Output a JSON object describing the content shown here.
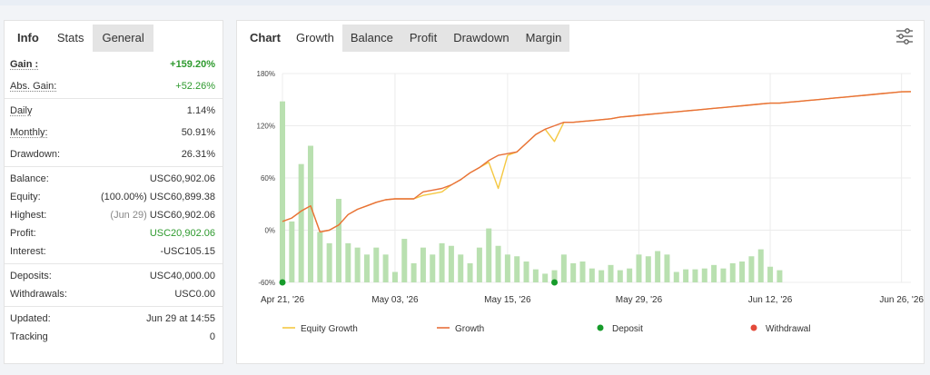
{
  "left_tabs": [
    "Info",
    "Stats",
    "General"
  ],
  "stats": {
    "gain_label": "Gain :",
    "gain_value": "+159.20%",
    "abs_gain_label": "Abs. Gain:",
    "abs_gain_value": "+52.26%",
    "daily_label": "Daily",
    "daily_value": "1.14%",
    "monthly_label": "Monthly:",
    "monthly_value": "50.91%",
    "drawdown_label": "Drawdown:",
    "drawdown_value": "26.31%",
    "balance_label": "Balance:",
    "balance_value": "USC60,902.06",
    "equity_label": "Equity:",
    "equity_note": "(100.00%)",
    "equity_value": "USC60,899.38",
    "highest_label": "Highest:",
    "highest_note": "(Jun 29)",
    "highest_value": "USC60,902.06",
    "profit_label": "Profit:",
    "profit_value": "USC20,902.06",
    "interest_label": "Interest:",
    "interest_value": "-USC105.15",
    "deposits_label": "Deposits:",
    "deposits_value": "USC40,000.00",
    "withdrawals_label": "Withdrawals:",
    "withdrawals_value": "USC0.00",
    "updated_label": "Updated:",
    "updated_value": "Jun 29 at 14:55",
    "tracking_label": "Tracking",
    "tracking_value": "0"
  },
  "right_tabs": [
    "Chart",
    "Growth",
    "Balance",
    "Profit",
    "Drawdown",
    "Margin"
  ],
  "settings_icon": "sliders-icon",
  "chart_data": {
    "type": "line",
    "y_ticks": [
      "180%",
      "120%",
      "60%",
      "0%",
      "-60%"
    ],
    "ylim": [
      -60,
      180
    ],
    "x_ticks": [
      "Apr 21, '26",
      "May 03, '26",
      "May 15, '26",
      "May 29, '26",
      "Jun 12, '26",
      "Jun 26, '26"
    ],
    "x_tick_days": [
      0,
      12,
      24,
      38,
      52,
      66
    ],
    "legend": [
      "Equity Growth",
      "Growth",
      "Deposit",
      "Withdrawal"
    ],
    "colors": {
      "equity": "#f5c842",
      "growth": "#e8703a",
      "bars": "#b9e0b0",
      "deposit": "#169b2a",
      "withdrawal": "#e34a3a",
      "grid": "#ececec"
    },
    "growth": [
      [
        0,
        10
      ],
      [
        1,
        14
      ],
      [
        2,
        22
      ],
      [
        3,
        28
      ],
      [
        4,
        -2
      ],
      [
        5,
        0
      ],
      [
        6,
        6
      ],
      [
        7,
        18
      ],
      [
        8,
        24
      ],
      [
        9,
        28
      ],
      [
        10,
        32
      ],
      [
        11,
        35
      ],
      [
        12,
        36
      ],
      [
        13,
        36
      ],
      [
        14,
        36
      ],
      [
        15,
        44
      ],
      [
        16,
        46
      ],
      [
        17,
        48
      ],
      [
        18,
        52
      ],
      [
        19,
        58
      ],
      [
        20,
        66
      ],
      [
        21,
        72
      ],
      [
        22,
        80
      ],
      [
        23,
        86
      ],
      [
        24,
        88
      ],
      [
        25,
        90
      ],
      [
        26,
        100
      ],
      [
        27,
        110
      ],
      [
        28,
        116
      ],
      [
        29,
        120
      ],
      [
        30,
        124
      ],
      [
        31,
        124
      ],
      [
        32,
        125
      ],
      [
        33,
        126
      ],
      [
        34,
        127
      ],
      [
        35,
        128
      ],
      [
        36,
        130
      ],
      [
        37,
        131
      ],
      [
        38,
        132
      ],
      [
        39,
        133
      ],
      [
        40,
        134
      ],
      [
        41,
        135
      ],
      [
        42,
        136
      ],
      [
        43,
        137
      ],
      [
        44,
        138
      ],
      [
        45,
        139
      ],
      [
        46,
        140
      ],
      [
        47,
        141
      ],
      [
        48,
        142
      ],
      [
        49,
        143
      ],
      [
        50,
        144
      ],
      [
        51,
        145
      ],
      [
        52,
        146
      ],
      [
        53,
        146
      ],
      [
        54,
        147
      ],
      [
        55,
        148
      ],
      [
        56,
        149
      ],
      [
        57,
        150
      ],
      [
        58,
        151
      ],
      [
        59,
        152
      ],
      [
        60,
        153
      ],
      [
        61,
        154
      ],
      [
        62,
        155
      ],
      [
        63,
        156
      ],
      [
        64,
        157
      ],
      [
        65,
        158
      ],
      [
        66,
        159
      ],
      [
        67,
        159.2
      ]
    ],
    "equity": [
      [
        0,
        10
      ],
      [
        1,
        14
      ],
      [
        2,
        22
      ],
      [
        3,
        28
      ],
      [
        4,
        -2
      ],
      [
        5,
        0
      ],
      [
        6,
        6
      ],
      [
        7,
        18
      ],
      [
        8,
        24
      ],
      [
        9,
        28
      ],
      [
        10,
        32
      ],
      [
        11,
        35
      ],
      [
        12,
        36
      ],
      [
        13,
        36
      ],
      [
        14,
        36
      ],
      [
        15,
        40
      ],
      [
        16,
        42
      ],
      [
        17,
        44
      ],
      [
        18,
        52
      ],
      [
        19,
        58
      ],
      [
        20,
        66
      ],
      [
        21,
        72
      ],
      [
        22,
        78
      ],
      [
        23,
        48
      ],
      [
        24,
        86
      ],
      [
        25,
        90
      ],
      [
        26,
        100
      ],
      [
        27,
        110
      ],
      [
        28,
        116
      ],
      [
        29,
        102
      ],
      [
        30,
        124
      ],
      [
        31,
        124
      ],
      [
        32,
        125
      ],
      [
        33,
        126
      ],
      [
        34,
        127
      ],
      [
        35,
        128
      ],
      [
        36,
        130
      ],
      [
        37,
        131
      ],
      [
        38,
        132
      ],
      [
        39,
        133
      ],
      [
        40,
        134
      ],
      [
        41,
        135
      ],
      [
        42,
        136
      ],
      [
        43,
        137
      ],
      [
        44,
        138
      ],
      [
        45,
        139
      ],
      [
        46,
        140
      ],
      [
        47,
        141
      ],
      [
        48,
        142
      ],
      [
        49,
        143
      ],
      [
        50,
        144
      ],
      [
        51,
        145
      ],
      [
        52,
        146
      ],
      [
        53,
        146
      ],
      [
        54,
        147
      ],
      [
        55,
        148
      ],
      [
        56,
        149
      ],
      [
        57,
        150
      ],
      [
        58,
        151
      ],
      [
        59,
        152
      ],
      [
        60,
        153
      ],
      [
        61,
        154
      ],
      [
        62,
        155
      ],
      [
        63,
        156
      ],
      [
        64,
        157
      ],
      [
        65,
        158
      ],
      [
        66,
        159
      ],
      [
        67,
        159.2
      ]
    ],
    "bars": [
      [
        0,
        148
      ],
      [
        1,
        10
      ],
      [
        2,
        76
      ],
      [
        3,
        97
      ],
      [
        4,
        -2
      ],
      [
        5,
        -15
      ],
      [
        6,
        36
      ],
      [
        7,
        -15
      ],
      [
        8,
        -20
      ],
      [
        9,
        -28
      ],
      [
        10,
        -20
      ],
      [
        11,
        -28
      ],
      [
        12,
        -48
      ],
      [
        13,
        -10
      ],
      [
        14,
        -38
      ],
      [
        15,
        -20
      ],
      [
        16,
        -28
      ],
      [
        17,
        -15
      ],
      [
        18,
        -18
      ],
      [
        19,
        -28
      ],
      [
        20,
        -38
      ],
      [
        21,
        -20
      ],
      [
        22,
        2
      ],
      [
        23,
        -18
      ],
      [
        24,
        -28
      ],
      [
        25,
        -30
      ],
      [
        26,
        -36
      ],
      [
        27,
        -45
      ],
      [
        28,
        -50
      ],
      [
        29,
        -46
      ],
      [
        30,
        -28
      ],
      [
        31,
        -38
      ],
      [
        32,
        -36
      ],
      [
        33,
        -44
      ],
      [
        34,
        -46
      ],
      [
        35,
        -40
      ],
      [
        36,
        -46
      ],
      [
        37,
        -44
      ],
      [
        38,
        -28
      ],
      [
        39,
        -30
      ],
      [
        40,
        -24
      ],
      [
        41,
        -28
      ],
      [
        42,
        -48
      ],
      [
        43,
        -45
      ],
      [
        44,
        -45
      ],
      [
        45,
        -44
      ],
      [
        46,
        -40
      ],
      [
        47,
        -44
      ],
      [
        48,
        -38
      ],
      [
        49,
        -36
      ],
      [
        50,
        -30
      ],
      [
        51,
        -22
      ],
      [
        52,
        -42
      ],
      [
        53,
        -46
      ]
    ],
    "bar_days": [
      0,
      1,
      2,
      3,
      4,
      5,
      6,
      7,
      8,
      9,
      10,
      11,
      12,
      13,
      14,
      15,
      16,
      17,
      18,
      19,
      20,
      21,
      22,
      23,
      24,
      25,
      26,
      27,
      28,
      29,
      30,
      31,
      32,
      33,
      34,
      35,
      36,
      37,
      38,
      39,
      40,
      41,
      42,
      43,
      44,
      45,
      46,
      47,
      48,
      49,
      50,
      51,
      52,
      53
    ],
    "deposits_days": [
      0,
      29
    ]
  }
}
